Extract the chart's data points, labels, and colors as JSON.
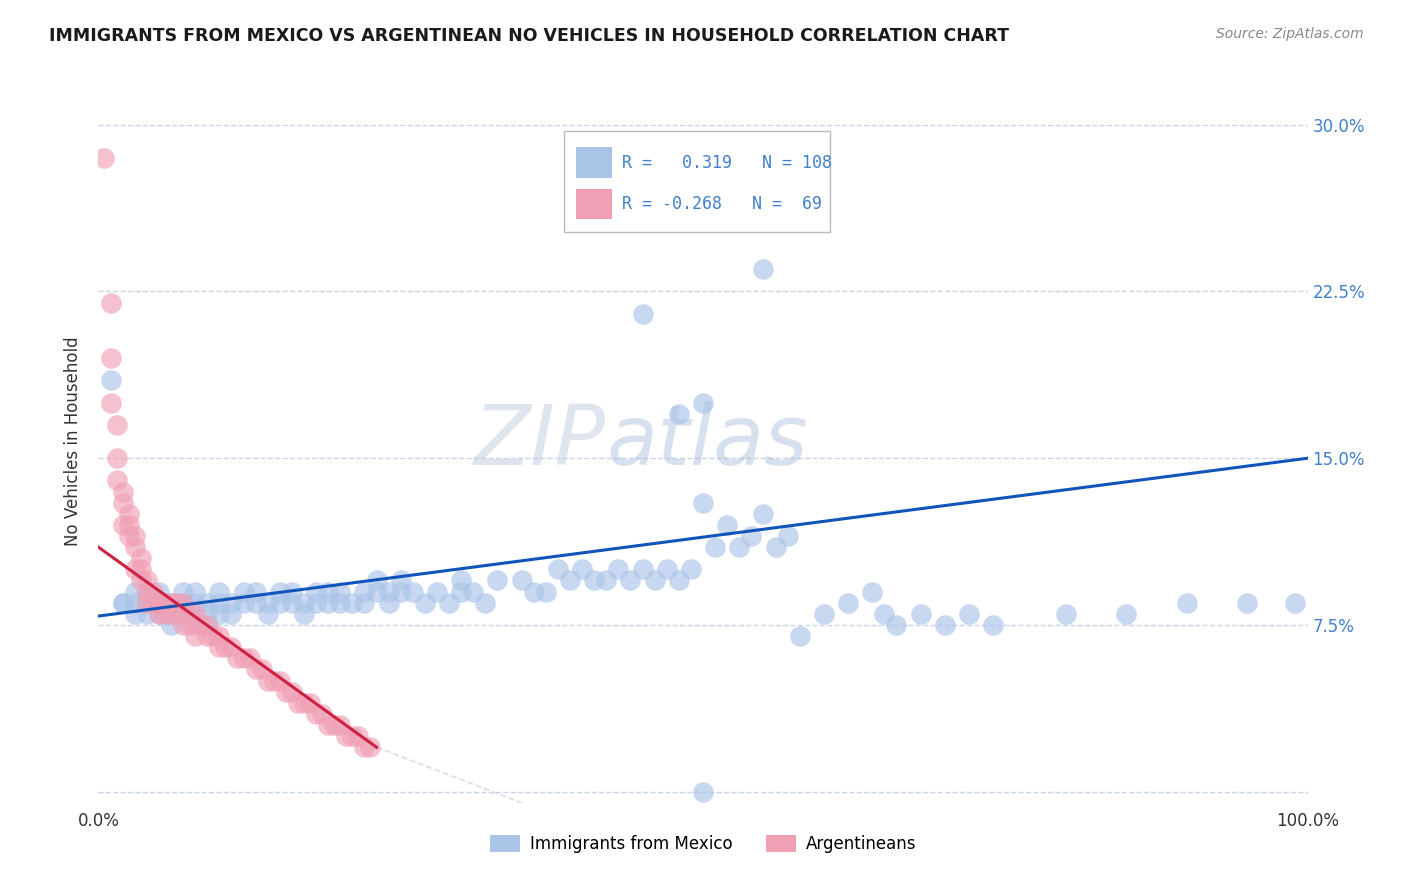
{
  "title": "IMMIGRANTS FROM MEXICO VS ARGENTINEAN NO VEHICLES IN HOUSEHOLD CORRELATION CHART",
  "source": "Source: ZipAtlas.com",
  "ylabel": "No Vehicles in Household",
  "watermark_zip": "ZIP",
  "watermark_atlas": "atlas",
  "legend_label1": "Immigrants from Mexico",
  "legend_label2": "Argentineans",
  "r1": 0.319,
  "n1": 108,
  "r2": -0.268,
  "n2": 69,
  "xlim": [
    0.0,
    1.0
  ],
  "ylim": [
    -0.005,
    0.32
  ],
  "ytick_positions": [
    0.0,
    0.075,
    0.15,
    0.225,
    0.3
  ],
  "ytick_labels_right": [
    "",
    "7.5%",
    "15.0%",
    "22.5%",
    "30.0%"
  ],
  "xtick_positions": [
    0.0,
    0.2,
    0.4,
    0.6,
    0.8,
    1.0
  ],
  "xtick_labels": [
    "0.0%",
    "",
    "",
    "",
    "",
    "100.0%"
  ],
  "blue_color": "#aac4e8",
  "pink_color": "#f0a0b5",
  "blue_line_color": "#1155bb",
  "pink_line_color": "#cc2244",
  "grid_color": "#c8d4e8",
  "background": "#ffffff",
  "right_label_color": "#4080cc",
  "blue_x": [
    0.01,
    0.02,
    0.02,
    0.03,
    0.03,
    0.03,
    0.04,
    0.04,
    0.04,
    0.05,
    0.05,
    0.05,
    0.06,
    0.06,
    0.06,
    0.07,
    0.07,
    0.07,
    0.08,
    0.08,
    0.08,
    0.09,
    0.09,
    0.09,
    0.1,
    0.1,
    0.1,
    0.11,
    0.11,
    0.12,
    0.12,
    0.13,
    0.13,
    0.14,
    0.14,
    0.15,
    0.15,
    0.16,
    0.16,
    0.17,
    0.17,
    0.18,
    0.18,
    0.19,
    0.19,
    0.2,
    0.2,
    0.21,
    0.22,
    0.22,
    0.23,
    0.23,
    0.24,
    0.24,
    0.25,
    0.25,
    0.26,
    0.27,
    0.28,
    0.29,
    0.3,
    0.3,
    0.31,
    0.32,
    0.33,
    0.35,
    0.36,
    0.37,
    0.38,
    0.39,
    0.4,
    0.41,
    0.42,
    0.43,
    0.44,
    0.45,
    0.46,
    0.47,
    0.48,
    0.49,
    0.5,
    0.51,
    0.52,
    0.53,
    0.54,
    0.55,
    0.56,
    0.57,
    0.58,
    0.6,
    0.62,
    0.64,
    0.65,
    0.66,
    0.68,
    0.7,
    0.72,
    0.74,
    0.8,
    0.85,
    0.9,
    0.95,
    0.99,
    0.5,
    0.55,
    0.45,
    0.48,
    0.5
  ],
  "blue_y": [
    0.185,
    0.085,
    0.085,
    0.09,
    0.085,
    0.08,
    0.09,
    0.085,
    0.08,
    0.09,
    0.085,
    0.08,
    0.085,
    0.08,
    0.075,
    0.09,
    0.085,
    0.08,
    0.09,
    0.085,
    0.075,
    0.085,
    0.08,
    0.075,
    0.09,
    0.085,
    0.08,
    0.085,
    0.08,
    0.09,
    0.085,
    0.09,
    0.085,
    0.085,
    0.08,
    0.09,
    0.085,
    0.09,
    0.085,
    0.085,
    0.08,
    0.09,
    0.085,
    0.09,
    0.085,
    0.09,
    0.085,
    0.085,
    0.09,
    0.085,
    0.095,
    0.09,
    0.09,
    0.085,
    0.095,
    0.09,
    0.09,
    0.085,
    0.09,
    0.085,
    0.095,
    0.09,
    0.09,
    0.085,
    0.095,
    0.095,
    0.09,
    0.09,
    0.1,
    0.095,
    0.1,
    0.095,
    0.095,
    0.1,
    0.095,
    0.1,
    0.095,
    0.1,
    0.095,
    0.1,
    0.13,
    0.11,
    0.12,
    0.11,
    0.115,
    0.125,
    0.11,
    0.115,
    0.07,
    0.08,
    0.085,
    0.09,
    0.08,
    0.075,
    0.08,
    0.075,
    0.08,
    0.075,
    0.08,
    0.08,
    0.085,
    0.085,
    0.085,
    0.0,
    0.235,
    0.215,
    0.17,
    0.175
  ],
  "pink_x": [
    0.005,
    0.01,
    0.01,
    0.01,
    0.015,
    0.015,
    0.015,
    0.02,
    0.02,
    0.02,
    0.025,
    0.025,
    0.025,
    0.03,
    0.03,
    0.03,
    0.035,
    0.035,
    0.035,
    0.04,
    0.04,
    0.04,
    0.045,
    0.045,
    0.05,
    0.05,
    0.055,
    0.055,
    0.06,
    0.06,
    0.065,
    0.065,
    0.07,
    0.07,
    0.075,
    0.075,
    0.08,
    0.08,
    0.085,
    0.09,
    0.09,
    0.095,
    0.1,
    0.1,
    0.105,
    0.11,
    0.115,
    0.12,
    0.125,
    0.13,
    0.135,
    0.14,
    0.145,
    0.15,
    0.155,
    0.16,
    0.165,
    0.17,
    0.175,
    0.18,
    0.185,
    0.19,
    0.195,
    0.2,
    0.205,
    0.21,
    0.215,
    0.22,
    0.225
  ],
  "pink_y": [
    0.285,
    0.22,
    0.195,
    0.175,
    0.165,
    0.15,
    0.14,
    0.135,
    0.13,
    0.12,
    0.125,
    0.12,
    0.115,
    0.115,
    0.11,
    0.1,
    0.105,
    0.1,
    0.095,
    0.095,
    0.09,
    0.085,
    0.09,
    0.085,
    0.085,
    0.08,
    0.085,
    0.08,
    0.085,
    0.08,
    0.085,
    0.08,
    0.085,
    0.075,
    0.08,
    0.075,
    0.08,
    0.07,
    0.075,
    0.075,
    0.07,
    0.07,
    0.07,
    0.065,
    0.065,
    0.065,
    0.06,
    0.06,
    0.06,
    0.055,
    0.055,
    0.05,
    0.05,
    0.05,
    0.045,
    0.045,
    0.04,
    0.04,
    0.04,
    0.035,
    0.035,
    0.03,
    0.03,
    0.03,
    0.025,
    0.025,
    0.025,
    0.02,
    0.02
  ],
  "blue_trend_x": [
    0.0,
    1.0
  ],
  "blue_trend_y": [
    0.079,
    0.15
  ],
  "pink_trend_x": [
    0.0,
    0.23
  ],
  "pink_trend_y": [
    0.11,
    0.02
  ]
}
